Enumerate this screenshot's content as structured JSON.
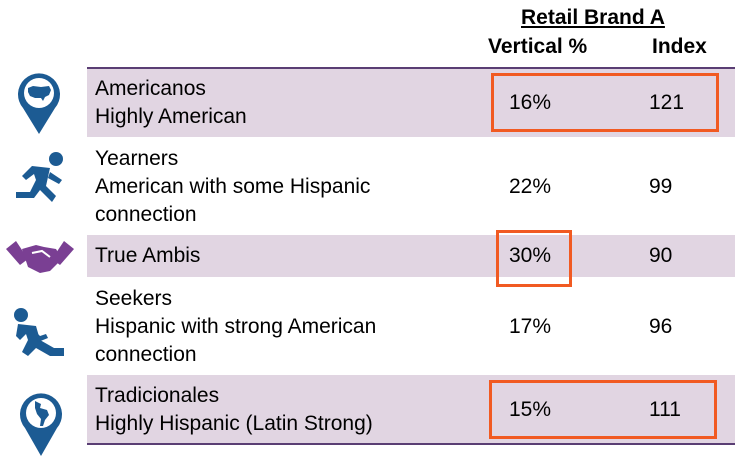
{
  "header": {
    "title": "Retail Brand A",
    "col_vertical": "Vertical %",
    "col_index": "Index"
  },
  "colors": {
    "row_shade": "#e1d5e2",
    "rule": "#5a3e74",
    "icon_blue": "#1c5b93",
    "icon_purple": "#7a3f93",
    "highlight": "#f15a22"
  },
  "rows": [
    {
      "icon": "us-map-pin-icon",
      "line1": "Americanos",
      "line2": "Highly American",
      "line3": "",
      "vertical": "16%",
      "index": "121",
      "highlight": "both"
    },
    {
      "icon": "running-person-icon",
      "line1": "Yearners",
      "line2": "American with some Hispanic",
      "line3": "connection",
      "vertical": "22%",
      "index": "99",
      "highlight": "none"
    },
    {
      "icon": "handshake-icon",
      "line1": "True Ambis",
      "line2": "",
      "line3": "",
      "vertical": "30%",
      "index": "90",
      "highlight": "vertical"
    },
    {
      "icon": "running-person-icon",
      "line1": "Seekers",
      "line2": "Hispanic with strong American",
      "line3": "connection",
      "vertical": "17%",
      "index": "96",
      "highlight": "none"
    },
    {
      "icon": "latin-america-map-pin-icon",
      "line1": "Tradicionales",
      "line2": "Highly Hispanic (Latin Strong)",
      "line3": "",
      "vertical": "15%",
      "index": "111",
      "highlight": "both"
    }
  ]
}
